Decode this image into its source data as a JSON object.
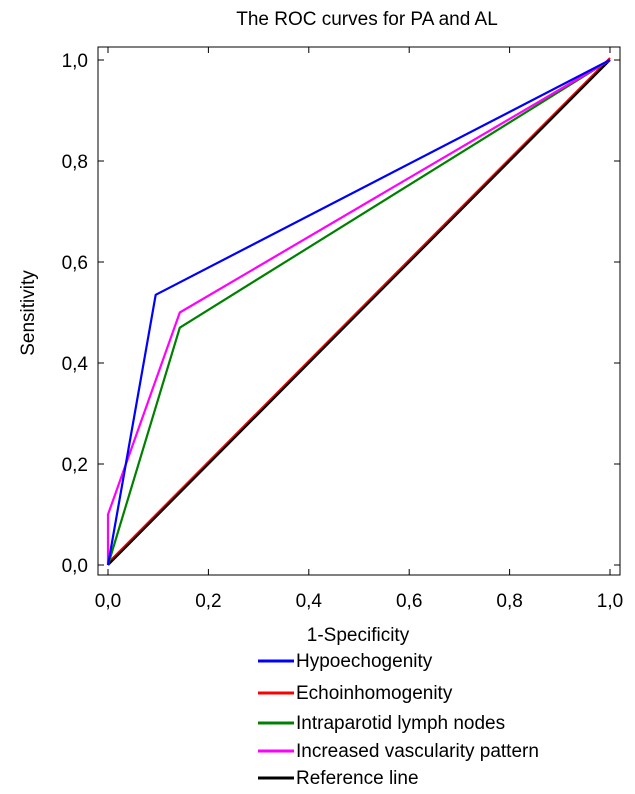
{
  "chart_data": {
    "type": "line",
    "title": "The ROC curves for PA and AL",
    "xlabel": "1-Specificity",
    "ylabel": "Sensitivity",
    "xlim": [
      0,
      1
    ],
    "ylim": [
      0,
      1
    ],
    "xticks": [
      "0,0",
      "0,2",
      "0,4",
      "0,6",
      "0,8",
      "1,0"
    ],
    "yticks": [
      "0,0",
      "0,2",
      "0,4",
      "0,6",
      "0,8",
      "1,0"
    ],
    "grid": false,
    "legend_position": "bottom",
    "series": [
      {
        "name": "Hypoechogenity",
        "color": "#0000ff",
        "x": [
          0,
          0.095,
          1
        ],
        "y": [
          0,
          0.535,
          1
        ]
      },
      {
        "name": "Echoinhomogenity",
        "color": "#ff0000",
        "x": [
          0,
          1
        ],
        "y": [
          0,
          1
        ]
      },
      {
        "name": "Intraparotid lymph nodes",
        "color": "#008000",
        "x": [
          0,
          0.143,
          1
        ],
        "y": [
          0,
          0.47,
          1
        ]
      },
      {
        "name": "Increased vascularity pattern",
        "color": "#ff00ff",
        "x": [
          0,
          0,
          0.143,
          1
        ],
        "y": [
          0,
          0.1,
          0.5,
          1
        ]
      },
      {
        "name": "Reference line",
        "color": "#000000",
        "x": [
          0,
          1
        ],
        "y": [
          0,
          1
        ]
      }
    ]
  }
}
